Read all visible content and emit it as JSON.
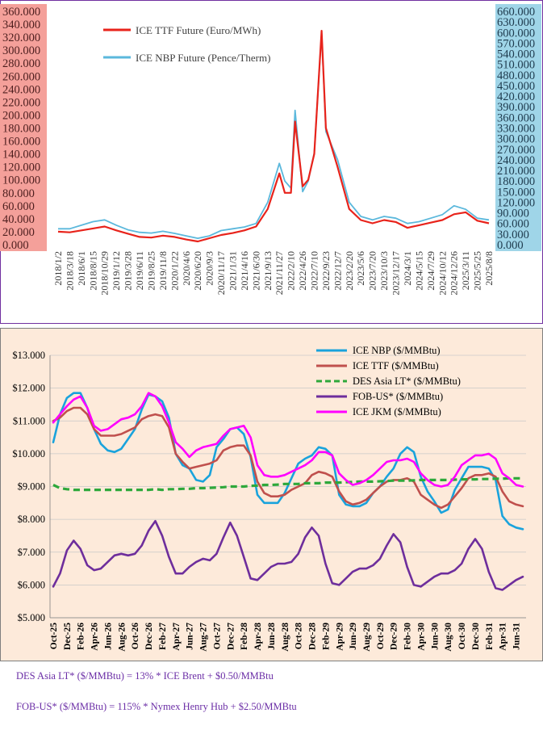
{
  "chart_data": [
    {
      "type": "line",
      "title": "",
      "dual_axis": true,
      "left_axis": {
        "ticks": [
          "0.000",
          "20.000",
          "40.000",
          "60.000",
          "80.000",
          "100.000",
          "120.000",
          "140.000",
          "160.000",
          "180.000",
          "200.000",
          "220.000",
          "240.000",
          "260.000",
          "280.000",
          "300.000",
          "320.000",
          "340.000",
          "360.000"
        ],
        "range": [
          0,
          360
        ],
        "label_background": "#f4a09a"
      },
      "right_axis": {
        "ticks": [
          "0.000",
          "30.000",
          "60.000",
          "90.000",
          "120.000",
          "150.000",
          "180.000",
          "210.000",
          "240.000",
          "270.000",
          "300.000",
          "330.000",
          "360.000",
          "390.000",
          "420.000",
          "450.000",
          "480.000",
          "510.000",
          "540.000",
          "570.000",
          "600.000",
          "630.000",
          "660.000"
        ],
        "range": [
          0,
          660
        ],
        "label_background": "#9fd5e8"
      },
      "x_tick_labels": [
        "2018/1/2",
        "2018/3/18",
        "2018/6/1",
        "2018/8/15",
        "2018/10/29",
        "2019/1/12",
        "2019/3/28",
        "2019/6/11",
        "2019/8/25",
        "2019/11/8",
        "2020/1/22",
        "2020/4/6",
        "2020/6/20",
        "2020/9/3",
        "2020/11/17",
        "2021/1/31",
        "2021/4/16",
        "2021/6/30",
        "2021/9/13",
        "2021/11/27",
        "2022/2/10",
        "2022/4/26",
        "2022/7/10",
        "2022/9/23",
        "2022/12/7",
        "2023/2/20",
        "2023/5/6",
        "2023/7/20",
        "2023/10/3",
        "2023/12/17",
        "2024/3/1",
        "2024/5/15",
        "2024/7/29",
        "2024/10/12",
        "2024/12/26",
        "2025/3/11",
        "2025/5/25",
        "2025/8/8"
      ],
      "series": [
        {
          "name": "ICE TTF Future (Euro/MWh)",
          "axis": "left",
          "color": "#e8231b",
          "x": [
            "2018/1/2",
            "2018/3/18",
            "2018/6/1",
            "2018/8/15",
            "2018/10/29",
            "2019/1/12",
            "2019/3/28",
            "2019/6/11",
            "2019/8/25",
            "2019/11/8",
            "2020/1/22",
            "2020/4/6",
            "2020/6/20",
            "2020/9/3",
            "2020/11/17",
            "2021/1/31",
            "2021/4/16",
            "2021/6/30",
            "2021/9/13",
            "2021/11/27",
            "2022/1/1",
            "2022/2/10",
            "2022/3/8",
            "2022/4/26",
            "2022/6/1",
            "2022/7/10",
            "2022/8/26",
            "2022/9/23",
            "2022/12/7",
            "2023/2/20",
            "2023/5/6",
            "2023/7/20",
            "2023/10/3",
            "2023/12/17",
            "2024/3/1",
            "2024/5/15",
            "2024/7/29",
            "2024/10/12",
            "2024/12/26",
            "2025/3/11",
            "2025/5/25",
            "2025/8/8"
          ],
          "values": [
            20,
            19,
            22,
            25,
            28,
            22,
            17,
            12,
            11,
            14,
            12,
            8,
            5,
            10,
            15,
            18,
            22,
            28,
            55,
            110,
            80,
            80,
            190,
            90,
            100,
            140,
            330,
            180,
            120,
            55,
            38,
            33,
            38,
            35,
            26,
            30,
            34,
            38,
            47,
            50,
            37,
            33
          ]
        },
        {
          "name": "ICE NBP Future (Pence/Therm)",
          "axis": "right",
          "color": "#5bb8dc",
          "x": [
            "2018/1/2",
            "2018/3/18",
            "2018/6/1",
            "2018/8/15",
            "2018/10/29",
            "2019/1/12",
            "2019/3/28",
            "2019/6/11",
            "2019/8/25",
            "2019/11/8",
            "2020/1/22",
            "2020/4/6",
            "2020/6/20",
            "2020/9/3",
            "2020/11/17",
            "2021/1/31",
            "2021/4/16",
            "2021/6/30",
            "2021/9/13",
            "2021/11/27",
            "2022/1/1",
            "2022/2/10",
            "2022/3/8",
            "2022/4/26",
            "2022/6/1",
            "2022/7/10",
            "2022/8/26",
            "2022/9/23",
            "2022/12/7",
            "2023/2/20",
            "2023/5/6",
            "2023/7/20",
            "2023/10/3",
            "2023/12/17",
            "2024/3/1",
            "2024/5/15",
            "2024/7/29",
            "2024/10/12",
            "2024/12/26",
            "2025/3/11",
            "2025/5/25",
            "2025/8/8"
          ],
          "values": [
            45,
            45,
            55,
            65,
            70,
            55,
            42,
            35,
            33,
            38,
            32,
            25,
            18,
            25,
            40,
            45,
            50,
            60,
            120,
            230,
            180,
            160,
            380,
            150,
            180,
            260,
            600,
            320,
            240,
            120,
            80,
            70,
            80,
            75,
            60,
            65,
            75,
            85,
            110,
            100,
            75,
            70
          ]
        }
      ]
    },
    {
      "type": "line",
      "title": "",
      "y_ticks": [
        "$5.000",
        "$6.000",
        "$7.000",
        "$8.000",
        "$9.000",
        "$10.000",
        "$11.000",
        "$12.000",
        "$13.000"
      ],
      "ylim": [
        5,
        13
      ],
      "categories": [
        "Oct-25",
        "Nov-25",
        "Dec-25",
        "Jan-26",
        "Feb-26",
        "Mar-26",
        "Apr-26",
        "May-26",
        "Jun-26",
        "Jul-26",
        "Aug-26",
        "Sep-26",
        "Oct-26",
        "Nov-26",
        "Dec-26",
        "Jan-27",
        "Feb-27",
        "Mar-27",
        "Apr-27",
        "May-27",
        "Jun-27",
        "Jul-27",
        "Aug-27",
        "Sep-27",
        "Oct-27",
        "Nov-27",
        "Dec-27",
        "Jan-28",
        "Feb-28",
        "Mar-28",
        "Apr-28",
        "May-28",
        "Jun-28",
        "Jul-28",
        "Aug-28",
        "Sep-28",
        "Oct-28",
        "Nov-28",
        "Dec-28",
        "Jan-29",
        "Feb-29",
        "Mar-29",
        "Apr-29",
        "May-29",
        "Jun-29",
        "Jul-29",
        "Aug-29",
        "Sep-29",
        "Oct-29",
        "Nov-29",
        "Dec-29",
        "Jan-30",
        "Feb-30",
        "Mar-30",
        "Apr-30",
        "May-30",
        "Jun-30",
        "Jul-30",
        "Aug-30",
        "Sep-30",
        "Oct-30",
        "Nov-30",
        "Dec-30",
        "Jan-31",
        "Feb-31",
        "Mar-31",
        "Apr-31",
        "May-31",
        "Jun-31",
        "Jul-31"
      ],
      "x_tick_labels": [
        "Oct-25",
        "Dec-25",
        "Feb-26",
        "Apr-26",
        "Jun-26",
        "Aug-26",
        "Oct-26",
        "Dec-26",
        "Feb-27",
        "Apr-27",
        "Jun-27",
        "Aug-27",
        "Oct-27",
        "Dec-27",
        "Feb-28",
        "Apr-28",
        "Jun-28",
        "Aug-28",
        "Oct-28",
        "Dec-28",
        "Feb-29",
        "Apr-29",
        "Jun-29",
        "Aug-29",
        "Oct-29",
        "Dec-29",
        "Feb-30",
        "Apr-30",
        "Jun-30",
        "Aug-30",
        "Oct-30",
        "Dec-30",
        "Feb-31",
        "Apr-31",
        "Jun-31"
      ],
      "series": [
        {
          "name": "ICE NBP ($/MMBtu)",
          "color": "#1aa3dc",
          "dash": "solid",
          "values": [
            10.35,
            11.2,
            11.7,
            11.85,
            11.85,
            11.4,
            10.75,
            10.3,
            10.1,
            10.05,
            10.15,
            10.45,
            10.75,
            11.35,
            11.8,
            11.75,
            11.6,
            11.1,
            10.0,
            9.65,
            9.55,
            9.2,
            9.15,
            9.35,
            10.2,
            10.45,
            10.75,
            10.8,
            10.6,
            9.9,
            8.75,
            8.5,
            8.5,
            8.5,
            8.8,
            9.25,
            9.7,
            9.85,
            9.95,
            10.2,
            10.15,
            9.95,
            8.75,
            8.45,
            8.4,
            8.4,
            8.5,
            8.8,
            9.0,
            9.3,
            9.55,
            10.0,
            10.2,
            10.05,
            9.3,
            8.85,
            8.55,
            8.2,
            8.3,
            8.9,
            9.25,
            9.6,
            9.6,
            9.6,
            9.55,
            9.2,
            8.1,
            7.85,
            7.75,
            7.7
          ]
        },
        {
          "name": "ICE TTF ($/MMBtu)",
          "color": "#c0504d",
          "dash": "solid",
          "values": [
            11.0,
            11.1,
            11.3,
            11.4,
            11.4,
            11.2,
            10.75,
            10.55,
            10.55,
            10.55,
            10.6,
            10.7,
            10.8,
            11.05,
            11.15,
            11.2,
            11.15,
            10.8,
            10.0,
            9.75,
            9.55,
            9.6,
            9.65,
            9.7,
            9.8,
            10.1,
            10.2,
            10.25,
            10.25,
            9.95,
            9.15,
            8.8,
            8.7,
            8.7,
            8.75,
            8.9,
            9.0,
            9.1,
            9.35,
            9.45,
            9.4,
            9.3,
            8.85,
            8.55,
            8.45,
            8.5,
            8.6,
            8.8,
            9.0,
            9.15,
            9.2,
            9.2,
            9.25,
            9.15,
            8.75,
            8.6,
            8.45,
            8.35,
            8.45,
            8.7,
            8.95,
            9.25,
            9.35,
            9.35,
            9.4,
            9.3,
            8.85,
            8.55,
            8.45,
            8.4
          ]
        },
        {
          "name": "DES Asia LT* ($/MMBtu)",
          "color": "#2ea83b",
          "dash": "dashed",
          "values": [
            9.05,
            8.95,
            8.92,
            8.9,
            8.9,
            8.9,
            8.9,
            8.9,
            8.9,
            8.9,
            8.9,
            8.9,
            8.9,
            8.9,
            8.9,
            8.92,
            8.9,
            8.92,
            8.92,
            8.93,
            8.93,
            8.95,
            8.95,
            8.96,
            8.97,
            8.98,
            9.0,
            9.0,
            9.0,
            9.02,
            9.03,
            9.05,
            9.05,
            9.06,
            9.08,
            9.08,
            9.08,
            9.1,
            9.1,
            9.1,
            9.12,
            9.12,
            9.12,
            9.13,
            9.14,
            9.15,
            9.15,
            9.15,
            9.16,
            9.17,
            9.18,
            9.18,
            9.18,
            9.19,
            9.2,
            9.2,
            9.2,
            9.2,
            9.2,
            9.21,
            9.22,
            9.22,
            9.22,
            9.23,
            9.23,
            9.24,
            9.24,
            9.25,
            9.25,
            9.25
          ]
        },
        {
          "name": "FOB-US* ($/MMBtu)",
          "color": "#6e2e9c",
          "dash": "solid",
          "values": [
            5.95,
            6.35,
            7.05,
            7.35,
            7.1,
            6.6,
            6.45,
            6.5,
            6.7,
            6.9,
            6.95,
            6.9,
            6.95,
            7.2,
            7.65,
            7.95,
            7.5,
            6.85,
            6.35,
            6.35,
            6.55,
            6.7,
            6.8,
            6.75,
            6.95,
            7.45,
            7.9,
            7.5,
            6.85,
            6.2,
            6.15,
            6.35,
            6.55,
            6.65,
            6.65,
            6.7,
            6.95,
            7.45,
            7.75,
            7.5,
            6.65,
            6.05,
            6.0,
            6.2,
            6.4,
            6.5,
            6.5,
            6.6,
            6.8,
            7.2,
            7.55,
            7.3,
            6.55,
            6.0,
            5.95,
            6.1,
            6.25,
            6.35,
            6.35,
            6.45,
            6.65,
            7.1,
            7.4,
            7.1,
            6.4,
            5.9,
            5.85,
            6.0,
            6.15,
            6.25
          ]
        },
        {
          "name": "ICE JKM ($/MMBtu)",
          "color": "#ff00ff",
          "dash": "solid",
          "values": [
            10.95,
            11.2,
            11.45,
            11.65,
            11.75,
            11.4,
            10.85,
            10.7,
            10.75,
            10.9,
            11.05,
            11.1,
            11.2,
            11.45,
            11.85,
            11.75,
            11.45,
            10.95,
            10.35,
            10.15,
            9.9,
            10.1,
            10.2,
            10.25,
            10.3,
            10.55,
            10.75,
            10.8,
            10.85,
            10.5,
            9.65,
            9.35,
            9.3,
            9.3,
            9.35,
            9.45,
            9.55,
            9.65,
            9.8,
            10.05,
            10.05,
            9.95,
            9.4,
            9.2,
            9.05,
            9.1,
            9.2,
            9.35,
            9.55,
            9.75,
            9.8,
            9.8,
            9.85,
            9.75,
            9.4,
            9.2,
            9.05,
            9.0,
            9.05,
            9.3,
            9.65,
            9.8,
            9.95,
            9.95,
            10.0,
            9.85,
            9.4,
            9.25,
            9.05,
            9.0
          ]
        }
      ]
    }
  ],
  "footnotes": {
    "line1": "DES Asia LT* ($/MMBtu) = 13% * ICE Brent + $0.50/MMBtu",
    "line2": "FOB-US* ($/MMBtu) = 115% * Nymex Henry Hub + $2.50/MMBtu"
  }
}
